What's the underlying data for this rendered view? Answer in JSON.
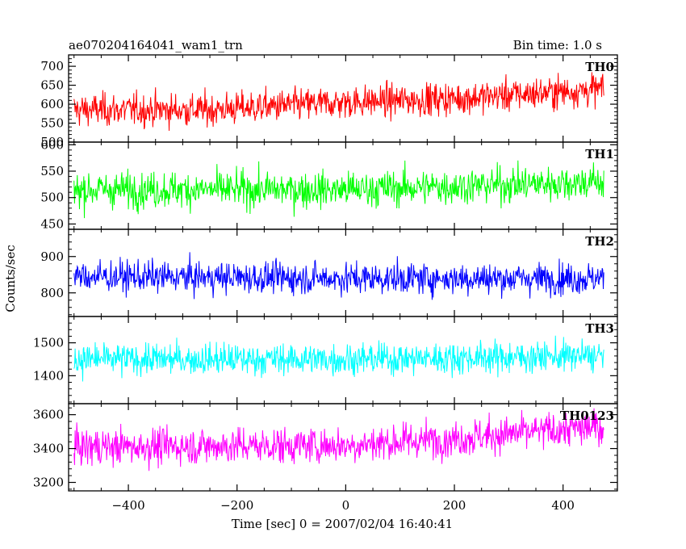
{
  "chart_data": {
    "type": "line",
    "title": "ae070204164041_wam1_trn",
    "subtitle": "Bin time: 1.0 s",
    "xlabel": "Time [sec] 0 = 2007/02/04 16:40:41",
    "ylabel": "Counts/sec",
    "xlim": [
      -510,
      500
    ],
    "x_ticks": [
      -400,
      -200,
      0,
      200,
      400
    ],
    "x_range_data": [
      -500,
      475
    ],
    "grid": false,
    "panels": [
      {
        "name": "TH0",
        "color": "#ff0000",
        "ylim": [
          500,
          730
        ],
        "y_ticks": [
          500,
          550,
          600,
          650,
          700
        ],
        "trend": [
          [
            -500,
            585
          ],
          [
            -250,
            585
          ],
          [
            0,
            605
          ],
          [
            200,
            615
          ],
          [
            475,
            640
          ]
        ],
        "noise_amplitude": 38
      },
      {
        "name": "TH1",
        "color": "#00ff00",
        "ylim": [
          440,
          605
        ],
        "y_ticks": [
          450,
          500,
          550,
          600
        ],
        "trend": [
          [
            -500,
            515
          ],
          [
            0,
            515
          ],
          [
            475,
            530
          ]
        ],
        "noise_amplitude": 30
      },
      {
        "name": "TH2",
        "color": "#0000ff",
        "ylim": [
          735,
          975
        ],
        "y_ticks": [
          800,
          900
        ],
        "trend": [
          [
            -500,
            845
          ],
          [
            0,
            840
          ],
          [
            475,
            840
          ]
        ],
        "noise_amplitude": 38
      },
      {
        "name": "TH3",
        "color": "#00ffff",
        "ylim": [
          1315,
          1580
        ],
        "y_ticks": [
          1400,
          1500
        ],
        "trend": [
          [
            -500,
            1450
          ],
          [
            0,
            1450
          ],
          [
            475,
            1460
          ]
        ],
        "noise_amplitude": 42
      },
      {
        "name": "TH0123",
        "color": "#ff00ff",
        "ylim": [
          3150,
          3665
        ],
        "y_ticks": [
          3200,
          3400,
          3600
        ],
        "trend": [
          [
            -500,
            3410
          ],
          [
            0,
            3420
          ],
          [
            200,
            3460
          ],
          [
            475,
            3530
          ]
        ],
        "noise_amplitude": 95
      }
    ]
  }
}
